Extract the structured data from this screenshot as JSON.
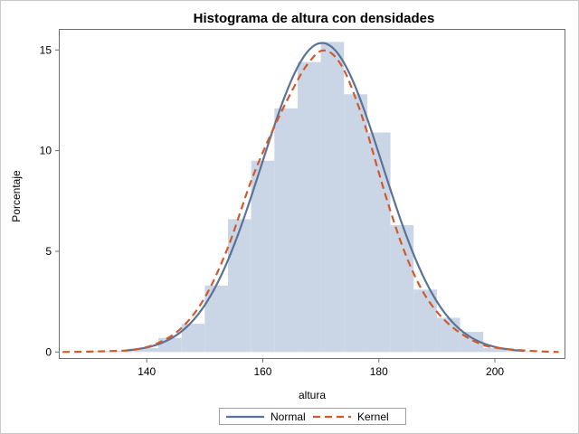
{
  "chart_data": {
    "type": "histogram",
    "title": "Histograma de altura con densidades",
    "xlabel": "altura",
    "ylabel": "Porcentaje",
    "xlim": [
      125,
      212
    ],
    "ylim": [
      -0.3,
      16
    ],
    "x_ticks": [
      {
        "value": 140,
        "label": "140"
      },
      {
        "value": 160,
        "label": "160"
      },
      {
        "value": 180,
        "label": "180"
      },
      {
        "value": 200,
        "label": "200"
      }
    ],
    "y_ticks": [
      {
        "value": 0,
        "label": "0"
      },
      {
        "value": 5,
        "label": "5"
      },
      {
        "value": 10,
        "label": "10"
      },
      {
        "value": 15,
        "label": "15"
      }
    ],
    "bin_width": 4,
    "bins": [
      {
        "start": 130,
        "value": 0.05
      },
      {
        "start": 134,
        "value": 0.05
      },
      {
        "start": 138,
        "value": 0.2
      },
      {
        "start": 142,
        "value": 0.7
      },
      {
        "start": 146,
        "value": 1.4
      },
      {
        "start": 150,
        "value": 3.3
      },
      {
        "start": 154,
        "value": 6.6
      },
      {
        "start": 158,
        "value": 9.5
      },
      {
        "start": 162,
        "value": 12.1
      },
      {
        "start": 166,
        "value": 14.4
      },
      {
        "start": 170,
        "value": 15.4
      },
      {
        "start": 174,
        "value": 12.8
      },
      {
        "start": 178,
        "value": 10.9
      },
      {
        "start": 182,
        "value": 6.3
      },
      {
        "start": 186,
        "value": 3.1
      },
      {
        "start": 190,
        "value": 1.7
      },
      {
        "start": 194,
        "value": 1.0
      },
      {
        "start": 198,
        "value": 0.2
      },
      {
        "start": 202,
        "value": 0.05
      }
    ],
    "series": [
      {
        "name": "Normal",
        "kind": "normal",
        "mean": 170.2,
        "sd": 10.4,
        "peak": 15.35,
        "x_range": [
          136.5,
          205
        ],
        "color": "#5a7396",
        "dash": "solid"
      },
      {
        "name": "Kernel",
        "kind": "kernel",
        "x_range": [
          125.5,
          211
        ],
        "points": [
          [
            125.5,
            0
          ],
          [
            130,
            0.02
          ],
          [
            134,
            0.05
          ],
          [
            138,
            0.12
          ],
          [
            142,
            0.45
          ],
          [
            146,
            1.2
          ],
          [
            150,
            2.7
          ],
          [
            154,
            5.2
          ],
          [
            158,
            8.5
          ],
          [
            162,
            11.2
          ],
          [
            166,
            13.5
          ],
          [
            168,
            14.4
          ],
          [
            170,
            14.95
          ],
          [
            172,
            14.8
          ],
          [
            174,
            14.0
          ],
          [
            176,
            12.6
          ],
          [
            178,
            10.9
          ],
          [
            180,
            8.9
          ],
          [
            182,
            7.0
          ],
          [
            184,
            5.3
          ],
          [
            186,
            3.9
          ],
          [
            188,
            2.8
          ],
          [
            190,
            2.0
          ],
          [
            192,
            1.4
          ],
          [
            194,
            0.95
          ],
          [
            196,
            0.6
          ],
          [
            198,
            0.35
          ],
          [
            200,
            0.22
          ],
          [
            204,
            0.1
          ],
          [
            208,
            0.03
          ],
          [
            211,
            0.0
          ]
        ],
        "color": "#d05a2e",
        "dash": "dashed"
      }
    ],
    "legend": {
      "position": "bottom-center"
    },
    "grid": false,
    "colors": {
      "bars": "#cad5e6",
      "normal": "#5a7396",
      "kernel": "#d05a2e"
    }
  }
}
